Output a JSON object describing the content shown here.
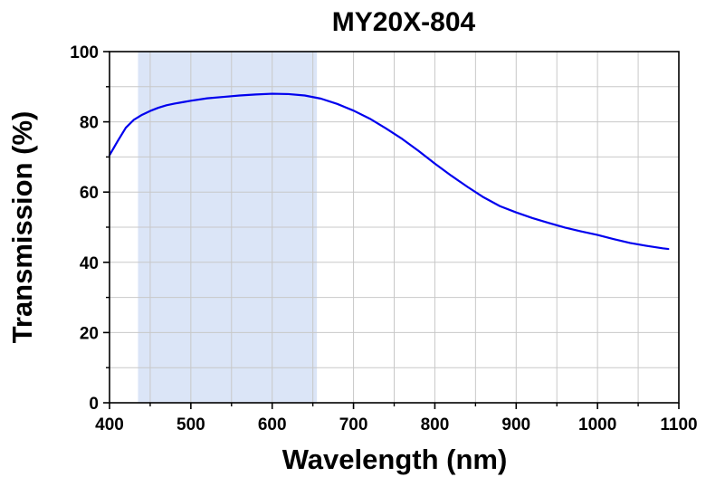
{
  "chart_data": {
    "type": "line",
    "title": "MY20X-804",
    "xlabel": "Wavelength (nm)",
    "ylabel": "Transmission (%)",
    "xlim": [
      400,
      1100
    ],
    "ylim": [
      0,
      100
    ],
    "xticks": [
      400,
      500,
      600,
      700,
      800,
      900,
      1000,
      1100
    ],
    "yticks": [
      0,
      20,
      40,
      60,
      80,
      100
    ],
    "grid": true,
    "highlight_band": {
      "x_start": 435,
      "x_end": 655,
      "color": "#dbe5f7"
    },
    "series": [
      {
        "name": "Transmission",
        "color": "#0000ee",
        "x": [
          400,
          410,
          420,
          430,
          440,
          450,
          460,
          470,
          480,
          490,
          500,
          520,
          540,
          560,
          580,
          600,
          620,
          640,
          660,
          680,
          700,
          720,
          740,
          760,
          780,
          800,
          820,
          840,
          860,
          880,
          900,
          920,
          940,
          960,
          980,
          1000,
          1020,
          1040,
          1060,
          1080,
          1087
        ],
        "y": [
          70.5,
          74.5,
          78.3,
          80.6,
          82.0,
          83.1,
          84.0,
          84.7,
          85.2,
          85.6,
          86.0,
          86.7,
          87.1,
          87.5,
          87.8,
          88.0,
          87.9,
          87.5,
          86.6,
          85.1,
          83.2,
          80.9,
          78.1,
          75.1,
          71.7,
          68.1,
          64.7,
          61.5,
          58.5,
          56.0,
          54.2,
          52.6,
          51.2,
          49.9,
          48.8,
          47.8,
          46.6,
          45.5,
          44.7,
          44.0,
          43.8
        ]
      }
    ]
  }
}
